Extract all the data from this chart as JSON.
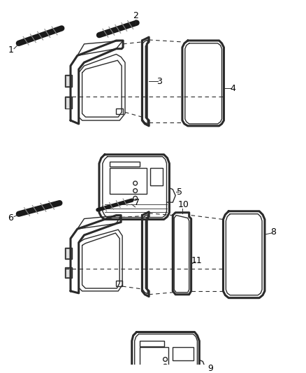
{
  "bg_color": "#ffffff",
  "line_color": "#2a2a2a",
  "label_color": "#000000",
  "figsize": [
    4.38,
    5.33
  ],
  "dpi": 100,
  "lw_thick": 2.2,
  "lw_thin": 1.0,
  "lw_dash": 0.8,
  "lw_strip": 6
}
